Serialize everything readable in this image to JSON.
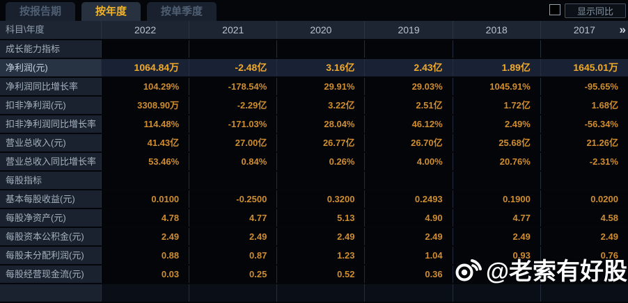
{
  "tabs": [
    {
      "label": "按报告期",
      "active": false
    },
    {
      "label": "按年度",
      "active": true
    },
    {
      "label": "按单季度",
      "active": false
    }
  ],
  "controls": {
    "show_yoy_label": "显示同比",
    "checkbox_checked": false
  },
  "table": {
    "corner_label": "科目\\年度",
    "years": [
      "2022",
      "2021",
      "2020",
      "2019",
      "2018",
      "2017"
    ],
    "more_icon": "»",
    "rows": [
      {
        "type": "section",
        "label": "成长能力指标",
        "values": [
          "",
          "",
          "",
          "",
          "",
          ""
        ]
      },
      {
        "type": "highlight",
        "label": "净利润(元)",
        "values": [
          "1064.84万",
          "-2.48亿",
          "3.16亿",
          "2.43亿",
          "1.89亿",
          "1645.01万"
        ]
      },
      {
        "type": "data",
        "label": "净利润同比增长率",
        "values": [
          "104.29%",
          "-178.54%",
          "29.91%",
          "29.03%",
          "1045.91%",
          "-95.65%"
        ]
      },
      {
        "type": "data",
        "label": "扣非净利润(元)",
        "values": [
          "3308.90万",
          "-2.29亿",
          "3.22亿",
          "2.51亿",
          "1.72亿",
          "1.68亿"
        ]
      },
      {
        "type": "data",
        "label": "扣非净利润同比增长率",
        "values": [
          "114.48%",
          "-171.03%",
          "28.04%",
          "46.12%",
          "2.49%",
          "-56.34%"
        ]
      },
      {
        "type": "data",
        "label": "营业总收入(元)",
        "values": [
          "41.43亿",
          "27.00亿",
          "26.77亿",
          "26.70亿",
          "25.68亿",
          "21.26亿"
        ]
      },
      {
        "type": "data",
        "label": "营业总收入同比增长率",
        "values": [
          "53.46%",
          "0.84%",
          "0.26%",
          "4.00%",
          "20.76%",
          "-2.31%"
        ]
      },
      {
        "type": "section",
        "label": "每股指标",
        "values": [
          "",
          "",
          "",
          "",
          "",
          ""
        ]
      },
      {
        "type": "data",
        "label": "基本每股收益(元)",
        "values": [
          "0.0100",
          "-0.2500",
          "0.3200",
          "0.2493",
          "0.1900",
          "0.0200"
        ]
      },
      {
        "type": "data",
        "label": "每股净资产(元)",
        "values": [
          "4.78",
          "4.77",
          "5.13",
          "4.90",
          "4.77",
          "4.58"
        ]
      },
      {
        "type": "data",
        "label": "每股资本公积金(元)",
        "values": [
          "2.49",
          "2.49",
          "2.49",
          "2.49",
          "2.49",
          "2.49"
        ]
      },
      {
        "type": "data",
        "label": "每股未分配利润(元)",
        "values": [
          "0.88",
          "0.87",
          "1.23",
          "1.04",
          "0.93",
          "0.76"
        ]
      },
      {
        "type": "data",
        "label": "每股经营现金流(元)",
        "values": [
          "0.03",
          "0.25",
          "0.52",
          "0.36",
          "",
          ""
        ]
      }
    ]
  },
  "watermark": {
    "handle": "@老索有好股",
    "icon": "weibo-icon"
  },
  "colors": {
    "accent_gold": "#f2b32a",
    "value_orange": "#cf8d2f",
    "highlight_value_gold": "#f0a929",
    "header_bg": "#1d2533",
    "label_cell_bg": "#1a2230",
    "value_cell_bg": "#030509",
    "highlight_row_bg": "#192234",
    "page_bg": "#04060a"
  }
}
